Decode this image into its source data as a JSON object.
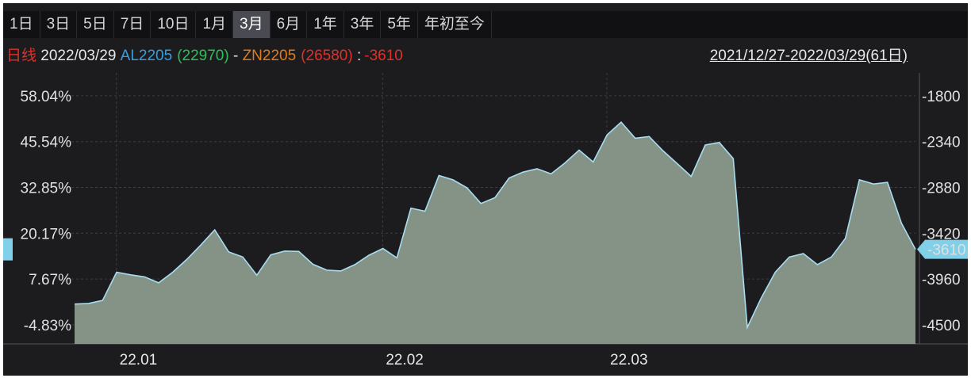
{
  "tabs": [
    "1日",
    "3日",
    "5日",
    "7日",
    "10日",
    "1月",
    "3月",
    "6月",
    "1年",
    "3年",
    "5年",
    "年初至今"
  ],
  "active_tab": "3月",
  "info": {
    "period": "日线",
    "date": "2022/03/29",
    "sym1": "AL2205",
    "sym1_val": "(22970)",
    "sep": "-",
    "sym2": "ZN2205",
    "sym2_val": "(26580)",
    "colon": ":",
    "spread": "-3610",
    "range": "2021/12/27-2022/03/29(61日)"
  },
  "colors": {
    "period": "#e0302a",
    "date": "#e8e8e8",
    "sym1": "#3a9de0",
    "sym1_val": "#2fbf5a",
    "sym2": "#e07a1f",
    "sym2_val": "#e0302a",
    "spread": "#e0302a",
    "line": "#a8dcf0",
    "fill": "#8a9a8c",
    "badge": "#7fd0e8"
  },
  "chart_data": {
    "type": "area",
    "x_ticks": [
      "22.01",
      "22.02",
      "22.03"
    ],
    "left_ticks": [
      "58.04%",
      "45.54%",
      "32.85%",
      "20.17%",
      "7.67%",
      "-4.83%"
    ],
    "right_ticks": [
      "-1800",
      "-2340",
      "-2880",
      "-3420",
      "-3960",
      "-4500"
    ],
    "ylim_right": [
      -4725,
      -1530
    ],
    "last_value_label": "-3610",
    "series": [
      {
        "values": [
          -4255,
          -4248,
          -4212,
          -3880,
          -3910,
          -3935,
          -4005,
          -3880,
          -3730,
          -3560,
          -3380,
          -3640,
          -3700,
          -3915,
          -3675,
          -3630,
          -3635,
          -3785,
          -3855,
          -3865,
          -3790,
          -3680,
          -3600,
          -3710,
          -3125,
          -3160,
          -2740,
          -2790,
          -2885,
          -3070,
          -3000,
          -2770,
          -2700,
          -2660,
          -2720,
          -2590,
          -2440,
          -2580,
          -2260,
          -2110,
          -2300,
          -2280,
          -2450,
          -2600,
          -2750,
          -2380,
          -2350,
          -2540,
          -4530,
          -4180,
          -3880,
          -3700,
          -3660,
          -3790,
          -3700,
          -3480,
          -2790,
          -2840,
          -2820,
          -3300,
          -3610
        ]
      }
    ]
  }
}
